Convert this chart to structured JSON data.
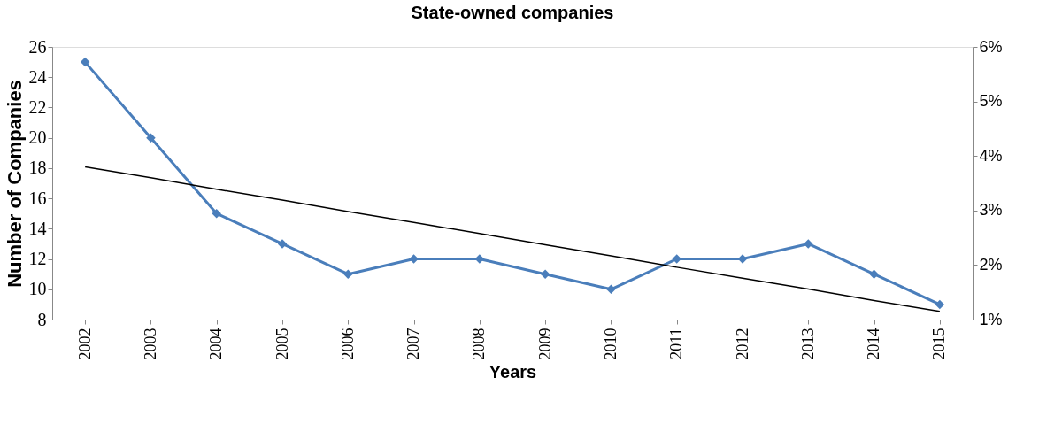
{
  "chart_data": {
    "type": "line",
    "title": "State-owned companies",
    "xlabel": "Years",
    "ylabel": "Number of Companies",
    "categories": [
      "2002",
      "2003",
      "2004",
      "2005",
      "2006",
      "2007",
      "2008",
      "2009",
      "2010",
      "2011",
      "2012",
      "2013",
      "2014",
      "2015"
    ],
    "series": [
      {
        "color": "#4a7ebb",
        "marker": "diamond",
        "values": [
          25,
          20,
          15,
          13,
          11,
          12,
          12,
          11,
          10,
          12,
          12,
          13,
          11,
          9
        ]
      },
      {
        "type": "line",
        "color": "#000000",
        "marker": "none",
        "axis": "y2",
        "values": [
          3.8,
          3.6,
          3.39,
          3.19,
          2.98,
          2.78,
          2.58,
          2.37,
          2.17,
          1.96,
          1.76,
          1.56,
          1.35,
          1.15
        ]
      }
    ],
    "ylim": [
      8,
      26
    ],
    "yticks": [
      8,
      10,
      12,
      14,
      16,
      18,
      20,
      22,
      24,
      26
    ],
    "y2lim": [
      1,
      6
    ],
    "y2ticks": [
      {
        "value": 1,
        "label": "1%"
      },
      {
        "value": 2,
        "label": "2%"
      },
      {
        "value": 3,
        "label": "3%"
      },
      {
        "value": 4,
        "label": "4%"
      },
      {
        "value": 5,
        "label": "5%"
      },
      {
        "value": 6,
        "label": "6%"
      }
    ],
    "grid": false,
    "line_style": "solid"
  }
}
